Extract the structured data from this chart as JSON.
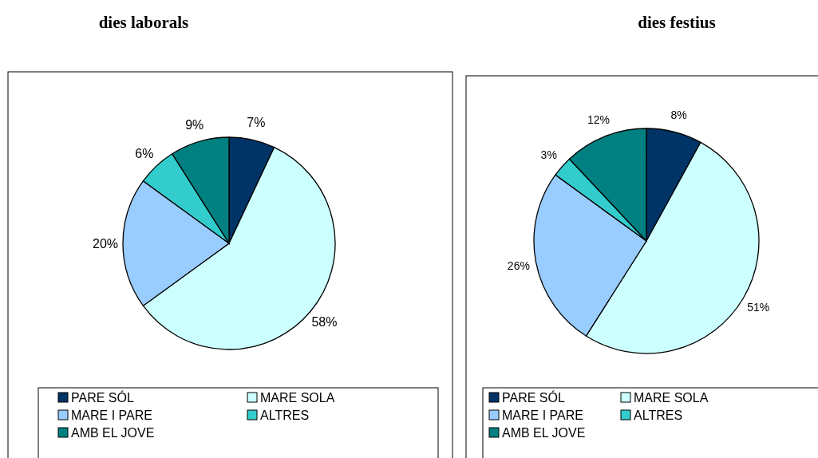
{
  "chart_data": [
    {
      "type": "pie",
      "title": "dies laborals",
      "categories": [
        "PARE SÓL",
        "MARE SOLA",
        "MARE I PARE",
        "ALTRES",
        "AMB EL JOVE"
      ],
      "values": [
        7,
        58,
        20,
        6,
        9
      ],
      "value_labels": [
        "7%",
        "58%",
        "20%",
        "6%",
        "9%"
      ],
      "colors": [
        "#003366",
        "#ccffff",
        "#99ccff",
        "#33cccc",
        "#008080"
      ],
      "legend": "bottom"
    },
    {
      "type": "pie",
      "title": "dies festius",
      "categories": [
        "PARE SÓL",
        "MARE SOLA",
        "MARE I PARE",
        "ALTRES",
        "AMB EL JOVE"
      ],
      "values": [
        8,
        51,
        26,
        3,
        12
      ],
      "value_labels": [
        "8%",
        "51%",
        "26%",
        "3%",
        "12%"
      ],
      "colors": [
        "#003366",
        "#ccffff",
        "#99ccff",
        "#33cccc",
        "#008080"
      ],
      "legend": "bottom"
    }
  ]
}
